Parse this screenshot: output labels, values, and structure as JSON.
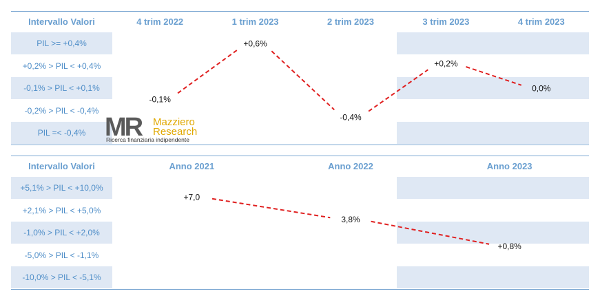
{
  "charts": [
    {
      "header": "Intervallo Valori",
      "columns": [
        "4 trim 2022",
        "1 trim 2023",
        "2 trim 2023",
        "3 trim 2023",
        "4 trim 2023"
      ],
      "rows": [
        "PIL >= +0,4%",
        "+0,2% > PIL < +0,4%",
        "-0,1% > PIL < +0,1%",
        "-0,2% > PIL < -0,4%",
        "PIL =< -0,4%"
      ],
      "points": [
        {
          "col": 0,
          "row": 2.5,
          "label": "-0,1%"
        },
        {
          "col": 1,
          "row": 0.0,
          "label": "+0,6%"
        },
        {
          "col": 2,
          "row": 3.3,
          "label": "-0,4%"
        },
        {
          "col": 3,
          "row": 0.9,
          "label": "+0,2%"
        },
        {
          "col": 4,
          "row": 2.0,
          "label": "0,0%"
        }
      ]
    },
    {
      "header": "Intervallo Valori",
      "columns": [
        "Anno 2021",
        "Anno 2022",
        "Anno 2023"
      ],
      "rows": [
        "+5,1% > PIL < +10,0%",
        "+2,1% > PIL < +5,0%",
        "-1,0% > PIL < +2,0%",
        "-5,0% > PIL < -1,1%",
        "-10,0% > PIL < -5,1%"
      ],
      "points": [
        {
          "col": 0,
          "row": 0.4,
          "label": "+7,0"
        },
        {
          "col": 1,
          "row": 1.4,
          "label": "3,8%"
        },
        {
          "col": 2,
          "row": 2.6,
          "label": "+0,8%"
        }
      ]
    }
  ],
  "chart_data": [
    {
      "type": "line",
      "categories": [
        "4 trim 2022",
        "1 trim 2023",
        "2 trim 2023",
        "3 trim 2023",
        "4 trim 2023"
      ],
      "values": [
        -0.1,
        0.6,
        -0.4,
        0.2,
        0.0
      ],
      "data_labels": [
        "-0,1%",
        "+0,6%",
        "-0,4%",
        "+0,2%",
        "0,0%"
      ],
      "ylabel": "Intervallo Valori"
    },
    {
      "type": "line",
      "categories": [
        "Anno 2021",
        "Anno 2022",
        "Anno 2023"
      ],
      "values": [
        7.0,
        3.8,
        0.8
      ],
      "data_labels": [
        "+7,0",
        "3,8%",
        "+0,8%"
      ],
      "ylabel": "Intervallo Valori"
    }
  ],
  "logo": {
    "mark": "MR",
    "name1": "Mazziero",
    "name2": "Research",
    "tagline": "Ricerca finanziaria indipendente"
  },
  "colors": {
    "band": "#dfe8f4",
    "header": "#6a9fd0",
    "label": "#4f8ec8",
    "line": "#e02020",
    "rule": "#7aa6d2",
    "logo_gray": "#5a5a5a",
    "logo_gold": "#e0a800"
  }
}
